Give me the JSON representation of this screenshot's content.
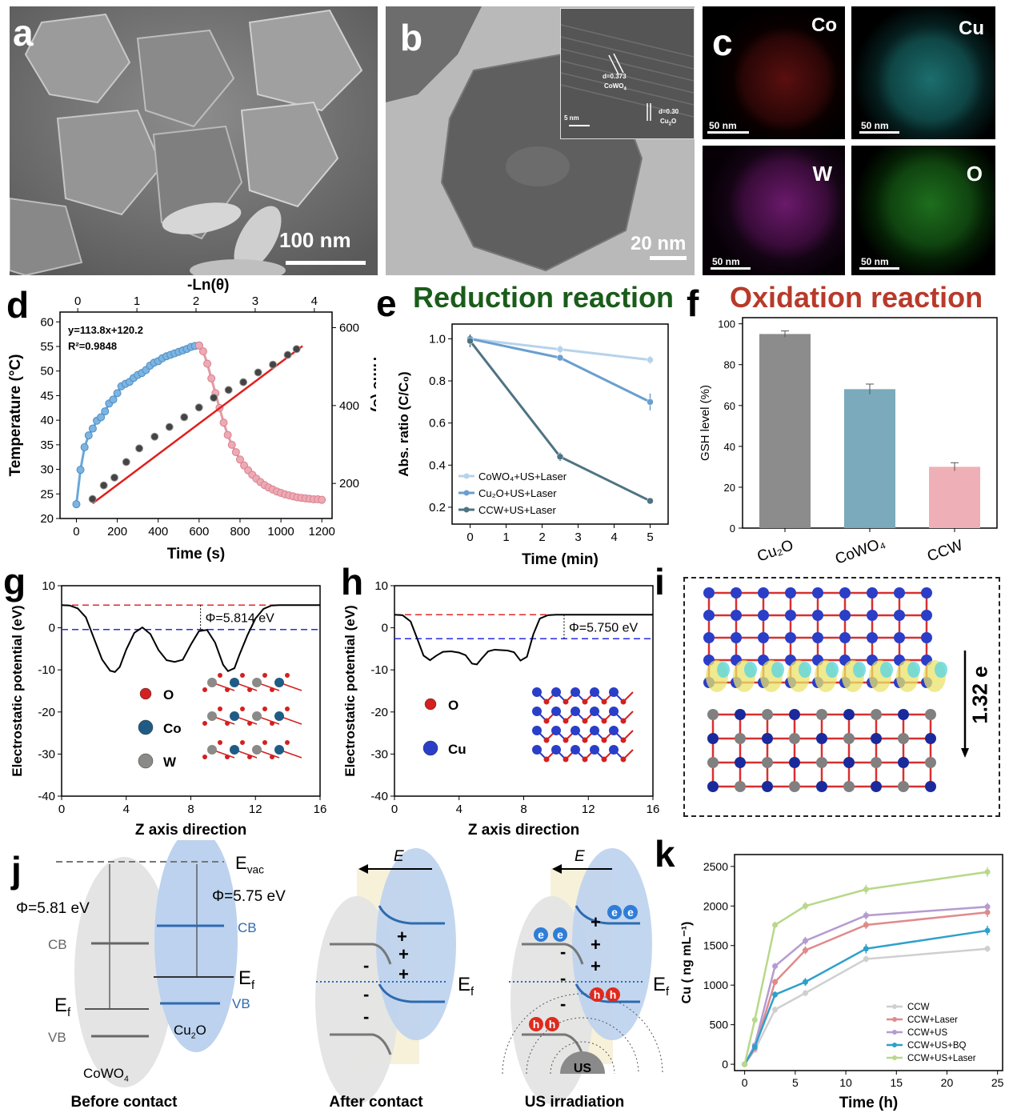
{
  "panels": {
    "a": {
      "label": "a",
      "scale": "100 nm"
    },
    "b": {
      "label": "b",
      "scale": "20 nm",
      "inset_scale": "5 nm",
      "d1": "d=0.373",
      "d1_phase": "CoWO",
      "d1_sub": "4",
      "d2": "d=0.30",
      "d2_phase": "Cu",
      "d2_sub": "2",
      "d2_tail": "O"
    },
    "c": {
      "label": "c",
      "maps": [
        {
          "element": "Co",
          "scale": "50 nm",
          "color": "#c0201e"
        },
        {
          "element": "Cu",
          "scale": "50 nm",
          "color": "#2fb4b4"
        },
        {
          "element": "W",
          "scale": "50 nm",
          "color": "#b020b0"
        },
        {
          "element": "O",
          "scale": "50 nm",
          "color": "#30b030"
        }
      ]
    },
    "d": {
      "label": "d",
      "top_axis": "-Ln(θ)",
      "fit_eq": "y=113.8x+120.2",
      "fit_r2": "R²=0.9848"
    },
    "e": {
      "label": "e",
      "title": "Reduction reaction",
      "title_color": "#1a5c1a"
    },
    "f": {
      "label": "f",
      "title": "Oxidation reaction",
      "title_color": "#b83a2a"
    },
    "g": {
      "label": "g",
      "phi": "Φ=5.814 eV",
      "legend": [
        "O",
        "Co",
        "W"
      ]
    },
    "h": {
      "label": "h",
      "phi": "Φ=5.750 eV",
      "legend": [
        "O",
        "Cu"
      ]
    },
    "i": {
      "label": "i",
      "charge": "1.32 e"
    },
    "j": {
      "label": "j",
      "evac": "E",
      "evac_sub": "vac",
      "phi_left": "Φ=5.81 eV",
      "phi_right": "Φ=5.75 eV",
      "cb": "CB",
      "vb": "VB",
      "ef": "E",
      "ef_sub": "f",
      "left_mat": "CoWO",
      "left_sub": "4",
      "right_mat": "Cu",
      "right_sub": "2",
      "right_tail": "O",
      "field": "E",
      "us": "US",
      "e_sym": "e",
      "h_sym": "h",
      "plus": "+",
      "minus": "-",
      "captions": [
        "Before contact",
        "After contact",
        "US irradiation"
      ]
    },
    "k": {
      "label": "k"
    }
  },
  "chart_data": [
    {
      "id": "d",
      "type": "line",
      "xlabel": "Time (s)",
      "ylabel": "Temperature (°C)",
      "y2label": "Time (s)",
      "x2label": "-Ln(θ)",
      "xlim": [
        -80,
        1250
      ],
      "ylim": [
        20,
        62
      ],
      "y2lim": [
        110,
        640
      ],
      "x2lim": [
        -0.3,
        4.3
      ],
      "xticks": [
        0,
        200,
        400,
        600,
        800,
        1000,
        1200
      ],
      "yticks": [
        20,
        25,
        30,
        35,
        40,
        45,
        50,
        55,
        60
      ],
      "y2ticks": [
        200,
        400,
        600
      ],
      "x2ticks": [
        0,
        1,
        2,
        3,
        4
      ],
      "heating": {
        "x": [
          0,
          20,
          40,
          60,
          80,
          100,
          120,
          140,
          160,
          180,
          200,
          220,
          240,
          260,
          280,
          300,
          320,
          340,
          360,
          380,
          400,
          420,
          440,
          460,
          480,
          500,
          520,
          540,
          560,
          580,
          600
        ],
        "y": [
          22.9,
          29.9,
          34.5,
          36.9,
          38.3,
          39.9,
          40.6,
          41.8,
          43.4,
          44.2,
          45.5,
          46.9,
          47.4,
          47.8,
          48.6,
          49.2,
          49.6,
          50.2,
          51.1,
          51.7,
          52.0,
          52.6,
          53.0,
          53.3,
          53.6,
          53.9,
          54.2,
          54.5,
          54.9,
          55.1,
          55.2
        ]
      },
      "cooling": {
        "x": [
          600,
          620,
          640,
          660,
          680,
          700,
          720,
          740,
          760,
          780,
          800,
          820,
          840,
          860,
          880,
          900,
          920,
          940,
          960,
          980,
          1000,
          1020,
          1040,
          1060,
          1080,
          1100,
          1120,
          1140,
          1160,
          1180,
          1200
        ],
        "y": [
          55.2,
          54.0,
          51.5,
          48.5,
          45.5,
          42.5,
          39.5,
          37.0,
          35.0,
          33.5,
          32.0,
          30.8,
          29.8,
          28.9,
          28.1,
          27.4,
          26.8,
          26.3,
          25.9,
          25.5,
          25.2,
          24.9,
          24.7,
          24.5,
          24.3,
          24.2,
          24.1,
          24.0,
          23.9,
          23.9,
          23.8
        ]
      },
      "scatter": {
        "x2": [
          0.25,
          0.44,
          0.62,
          0.82,
          1.04,
          1.3,
          1.55,
          1.8,
          2.05,
          2.3,
          2.55,
          2.8,
          3.05,
          3.3,
          3.55,
          3.7
        ],
        "y2": [
          160,
          195,
          215,
          255,
          290,
          320,
          345,
          370,
          395,
          420,
          440,
          460,
          485,
          505,
          530,
          545
        ]
      },
      "fit": {
        "slope": 113.8,
        "intercept": 120.2,
        "x2range": [
          0.25,
          3.8
        ]
      }
    },
    {
      "id": "e",
      "type": "line",
      "xlabel": "Time (min)",
      "ylabel": "Abs. ratio (C/C₀)",
      "xlim": [
        -0.5,
        5.5
      ],
      "ylim": [
        0.12,
        1.07
      ],
      "xticks": [
        0,
        1,
        2,
        3,
        4,
        5
      ],
      "yticks": [
        0.2,
        0.4,
        0.6,
        0.8,
        1.0
      ],
      "x": [
        0,
        2.5,
        5
      ],
      "series": [
        {
          "name": "CoWO₄+US+Laser",
          "values": [
            1.0,
            0.95,
            0.9
          ],
          "err": [
            0.02,
            0.02,
            0.02
          ],
          "color": "#b6d3ec"
        },
        {
          "name": "Cu₂O+US+Laser",
          "values": [
            1.0,
            0.91,
            0.7
          ],
          "err": [
            0.02,
            0.015,
            0.04
          ],
          "color": "#6a9fcf"
        },
        {
          "name": "CCW+US+Laser",
          "values": [
            0.99,
            0.44,
            0.23
          ],
          "err": [
            0.03,
            0.02,
            0.01
          ],
          "color": "#4f7383"
        }
      ]
    },
    {
      "id": "f",
      "type": "bar",
      "ylabel": "GSH level (%)",
      "ylim": [
        0,
        103
      ],
      "yticks": [
        0,
        20,
        40,
        60,
        80,
        100
      ],
      "categories": [
        "Cu₂O",
        "CoWO₄",
        "CCW"
      ],
      "values": [
        95,
        68,
        30
      ],
      "err": [
        1.5,
        2.5,
        2.0
      ],
      "colors": [
        "#8c8c8c",
        "#7aaabb",
        "#eeb0b6"
      ]
    },
    {
      "id": "g",
      "type": "line",
      "xlabel": "Z axis direction",
      "ylabel": "Electrostatic potential (eV)",
      "xlim": [
        0,
        16
      ],
      "ylim": [
        -40,
        10
      ],
      "xticks": [
        0,
        4,
        8,
        12,
        16
      ],
      "yticks": [
        10,
        0,
        -10,
        -20,
        -30,
        -40
      ],
      "x": [
        0,
        0.5,
        1,
        1.5,
        2,
        2.5,
        3,
        3.3,
        3.6,
        4,
        4.5,
        5,
        5.5,
        6,
        6.5,
        7,
        7.5,
        8,
        8.5,
        9,
        9.5,
        10,
        10.3,
        10.7,
        11,
        11.5,
        12,
        12.5,
        13,
        13.5,
        14,
        15,
        16
      ],
      "y": [
        5.4,
        5.3,
        4.6,
        2.5,
        -2.5,
        -7.5,
        -10.2,
        -10.5,
        -9.3,
        -5.2,
        -1.2,
        0.1,
        -1.5,
        -5.3,
        -7.7,
        -8.1,
        -7.6,
        -4.0,
        -0.8,
        -0.5,
        -3.5,
        -8.8,
        -10.3,
        -9.6,
        -6.5,
        -1.8,
        2.2,
        4.5,
        5.3,
        5.4,
        5.4,
        5.4,
        5.4
      ],
      "vacuum_level": 5.4,
      "fermi_level": -0.4
    },
    {
      "id": "h",
      "type": "line",
      "xlabel": "Z axis direction",
      "ylabel": "Electrostatic potential (eV)",
      "xlim": [
        0,
        16
      ],
      "ylim": [
        -40,
        10
      ],
      "xticks": [
        0,
        4,
        8,
        12,
        16
      ],
      "yticks": [
        10,
        0,
        -10,
        -20,
        -30,
        -40
      ],
      "x": [
        0,
        0.5,
        1,
        1.4,
        1.8,
        2.2,
        2.6,
        3,
        3.5,
        4,
        4.4,
        4.8,
        5.1,
        5.4,
        5.8,
        6.2,
        6.6,
        7,
        7.4,
        7.8,
        8.2,
        8.6,
        9,
        9.5,
        10,
        11,
        12,
        13,
        14,
        15,
        16
      ],
      "y": [
        3.1,
        3.0,
        1.5,
        -2.5,
        -6.6,
        -7.7,
        -6.6,
        -5.7,
        -5.6,
        -5.9,
        -6.5,
        -8.5,
        -8.7,
        -7.3,
        -5.6,
        -5.2,
        -5.3,
        -5.4,
        -5.8,
        -7.8,
        -6.9,
        -1.5,
        2.2,
        3.0,
        3.1,
        3.1,
        3.1,
        3.1,
        3.1,
        3.1,
        3.1
      ],
      "vacuum_level": 3.1,
      "fermi_level": -2.6
    },
    {
      "id": "k",
      "type": "line",
      "xlabel": "Time (h)",
      "ylabel": "Cu ( ng mL⁻¹)",
      "xlim": [
        -1,
        25.5
      ],
      "ylim": [
        -80,
        2650
      ],
      "xticks": [
        0,
        5,
        10,
        15,
        20,
        25
      ],
      "yticks": [
        0,
        500,
        1000,
        1500,
        2000,
        2500
      ],
      "x": [
        0,
        1,
        3,
        6,
        12,
        24
      ],
      "series": [
        {
          "name": "CCW",
          "values": [
            0,
            180,
            690,
            900,
            1330,
            1460
          ],
          "err": [
            20,
            30,
            40,
            40,
            40,
            40
          ],
          "color": "#cfcfcf"
        },
        {
          "name": "CCW+Laser",
          "values": [
            0,
            200,
            1040,
            1440,
            1760,
            1920
          ],
          "err": [
            20,
            30,
            40,
            50,
            50,
            60
          ],
          "color": "#e08a8a"
        },
        {
          "name": "CCW+US",
          "values": [
            0,
            240,
            1240,
            1560,
            1880,
            1990
          ],
          "err": [
            20,
            30,
            40,
            50,
            50,
            50
          ],
          "color": "#b49bd0"
        },
        {
          "name": "CCW+US+BQ",
          "values": [
            0,
            220,
            880,
            1040,
            1460,
            1690
          ],
          "err": [
            20,
            30,
            40,
            50,
            60,
            60
          ],
          "color": "#2ea0cc"
        },
        {
          "name": "CCW+US+Laser",
          "values": [
            0,
            560,
            1760,
            2000,
            2210,
            2430
          ],
          "err": [
            20,
            40,
            40,
            50,
            60,
            60
          ],
          "color": "#b8d88a"
        }
      ]
    }
  ]
}
